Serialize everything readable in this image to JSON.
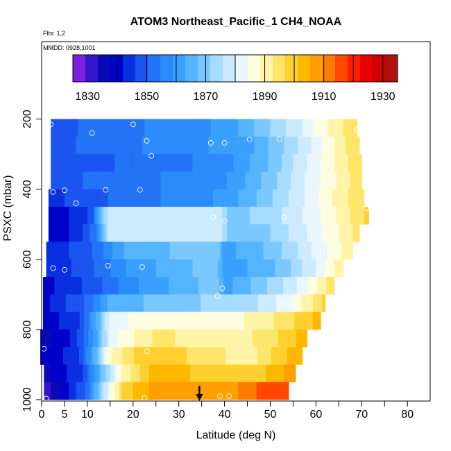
{
  "chart_data": {
    "type": "heatmap",
    "title": "ATOM3 Northeast_Pacific_1 CH4_NOAA",
    "flights_note": "Flts: 1,2",
    "dates_note": "MMDD: 0928,1001",
    "xlabel": "Latitude (deg N)",
    "ylabel": "PSXC (mbar)",
    "xlim": [
      0,
      85
    ],
    "ylim": [
      1000,
      0
    ],
    "x_ticks": [
      0,
      5,
      10,
      20,
      30,
      40,
      50,
      60,
      70,
      80
    ],
    "x_minor_ticks": [
      15,
      25,
      35,
      45,
      55,
      65,
      75
    ],
    "y_ticks": [
      200,
      400,
      600,
      800,
      1000
    ],
    "colorbar": {
      "min": 1825,
      "max": 1935,
      "step": 5,
      "tick_values": [
        1830,
        1850,
        1870,
        1890,
        1910,
        1930
      ],
      "colors": [
        "#7B1FE0",
        "#3515CC",
        "#0A0AB4",
        "#0000C8",
        "#0A2FE0",
        "#1A55F0",
        "#2472F5",
        "#2C8BFA",
        "#3AA0FF",
        "#55B4FF",
        "#7BC8FF",
        "#A8DCFF",
        "#CDEBFF",
        "#EAF7FF",
        "#FFFDE0",
        "#FFF4A8",
        "#FFE66A",
        "#FFD030",
        "#FFB800",
        "#FF9E00",
        "#FF7A00",
        "#FF4800",
        "#FF1A00",
        "#E80000",
        "#CC0000",
        "#B01010"
      ]
    },
    "rows": [
      {
        "p": 225,
        "lat_min": 2,
        "lat_max": 69,
        "stops": [
          [
            2,
            1853
          ],
          [
            40,
            1866
          ],
          [
            50,
            1880
          ],
          [
            57,
            1890
          ],
          [
            63,
            1901
          ],
          [
            69,
            1909
          ]
        ]
      },
      {
        "p": 275,
        "lat_min": 2,
        "lat_max": 69.5,
        "stops": [
          [
            2,
            1853
          ],
          [
            45,
            1868
          ],
          [
            55,
            1883
          ],
          [
            60,
            1892
          ],
          [
            65,
            1902
          ],
          [
            69.5,
            1910
          ]
        ]
      },
      {
        "p": 325,
        "lat_min": 2,
        "lat_max": 70,
        "stops": [
          [
            2,
            1851
          ],
          [
            40,
            1862
          ],
          [
            50,
            1876
          ],
          [
            57,
            1888
          ],
          [
            63,
            1898
          ],
          [
            70,
            1910
          ]
        ]
      },
      {
        "p": 375,
        "lat_min": 2,
        "lat_max": 70,
        "stops": [
          [
            2,
            1853
          ],
          [
            40,
            1864
          ],
          [
            50,
            1878
          ],
          [
            57,
            1889
          ],
          [
            63,
            1898
          ],
          [
            70,
            1909
          ]
        ]
      },
      {
        "p": 425,
        "lat_min": 1.5,
        "lat_max": 70.5,
        "stops": [
          [
            1.5,
            1848
          ],
          [
            10,
            1853
          ],
          [
            40,
            1866
          ],
          [
            50,
            1879
          ],
          [
            57,
            1889
          ],
          [
            63,
            1899
          ],
          [
            70.5,
            1910
          ]
        ]
      },
      {
        "p": 475,
        "lat_min": 1.5,
        "lat_max": 71.5,
        "stops": [
          [
            1.5,
            1843
          ],
          [
            8,
            1846
          ],
          [
            11,
            1852
          ],
          [
            13,
            1874
          ],
          [
            15,
            1890
          ],
          [
            39,
            1889
          ],
          [
            41,
            1878
          ],
          [
            50,
            1882
          ],
          [
            58,
            1891
          ],
          [
            64,
            1899
          ],
          [
            71.5,
            1912
          ]
        ]
      },
      {
        "p": 525,
        "lat_min": 1.5,
        "lat_max": 69.5,
        "stops": [
          [
            1.5,
            1841
          ],
          [
            8,
            1847
          ],
          [
            12,
            1859
          ],
          [
            15,
            1888
          ],
          [
            39,
            1888
          ],
          [
            41,
            1876
          ],
          [
            50,
            1880
          ],
          [
            58,
            1890
          ],
          [
            69.5,
            1907
          ]
        ]
      },
      {
        "p": 575,
        "lat_min": 1,
        "lat_max": 68,
        "stops": [
          [
            1,
            1846
          ],
          [
            10,
            1853
          ],
          [
            18,
            1870
          ],
          [
            38,
            1880
          ],
          [
            40,
            1868
          ],
          [
            50,
            1876
          ],
          [
            58,
            1888
          ],
          [
            68,
            1904
          ]
        ]
      },
      {
        "p": 625,
        "lat_min": 1,
        "lat_max": 66,
        "stops": [
          [
            1,
            1845
          ],
          [
            10,
            1853
          ],
          [
            20,
            1867
          ],
          [
            38,
            1878
          ],
          [
            40,
            1866
          ],
          [
            52,
            1876
          ],
          [
            60,
            1890
          ],
          [
            66,
            1905
          ]
        ]
      },
      {
        "p": 675,
        "lat_min": 0.3,
        "lat_max": 64,
        "stops": [
          [
            0.3,
            1843
          ],
          [
            10,
            1851
          ],
          [
            20,
            1864
          ],
          [
            38,
            1878
          ],
          [
            40,
            1868
          ],
          [
            48,
            1878
          ],
          [
            56,
            1890
          ],
          [
            64,
            1909
          ]
        ]
      },
      {
        "p": 725,
        "lat_min": 0.3,
        "lat_max": 62,
        "stops": [
          [
            0.3,
            1843
          ],
          [
            10,
            1856
          ],
          [
            15,
            1872
          ],
          [
            35,
            1880
          ],
          [
            45,
            1882
          ],
          [
            54,
            1893
          ],
          [
            62,
            1912
          ]
        ]
      },
      {
        "p": 775,
        "lat_min": 0.3,
        "lat_max": 61,
        "stops": [
          [
            0.3,
            1842
          ],
          [
            8,
            1849
          ],
          [
            12,
            1870
          ],
          [
            15,
            1892
          ],
          [
            25,
            1900
          ],
          [
            40,
            1897
          ],
          [
            50,
            1904
          ],
          [
            61,
            1917
          ]
        ]
      },
      {
        "p": 825,
        "lat_min": -0.3,
        "lat_max": 58,
        "stops": [
          [
            -0.3,
            1837
          ],
          [
            7,
            1846
          ],
          [
            12,
            1868
          ],
          [
            15,
            1893
          ],
          [
            25,
            1906
          ],
          [
            42,
            1902
          ],
          [
            50,
            1908
          ],
          [
            58,
            1918
          ]
        ]
      },
      {
        "p": 875,
        "lat_min": -0.3,
        "lat_max": 57,
        "stops": [
          [
            -0.3,
            1840
          ],
          [
            8,
            1848
          ],
          [
            12,
            1875
          ],
          [
            15,
            1900
          ],
          [
            23,
            1915
          ],
          [
            35,
            1908
          ],
          [
            45,
            1902
          ],
          [
            57,
            1920
          ]
        ]
      },
      {
        "p": 925,
        "lat_min": 0.5,
        "lat_max": 55.5,
        "stops": [
          [
            0.5,
            1838
          ],
          [
            9,
            1850
          ],
          [
            14,
            1880
          ],
          [
            18,
            1902
          ],
          [
            25,
            1918
          ],
          [
            40,
            1912
          ],
          [
            48,
            1914
          ],
          [
            55.5,
            1923
          ]
        ]
      },
      {
        "p": 975,
        "lat_min": 0.5,
        "lat_max": 54,
        "stops": [
          [
            0.5,
            1830
          ],
          [
            4,
            1840
          ],
          [
            10,
            1856
          ],
          [
            14,
            1888
          ],
          [
            18,
            1912
          ],
          [
            25,
            1922
          ],
          [
            40,
            1924
          ],
          [
            46,
            1926
          ],
          [
            48,
            1933
          ],
          [
            54,
            1933
          ]
        ]
      }
    ],
    "sample_points": [
      [
        2,
        215
      ],
      [
        20,
        215
      ],
      [
        69,
        230
      ],
      [
        11,
        240
      ],
      [
        23,
        262
      ],
      [
        45.5,
        258
      ],
      [
        52,
        257
      ],
      [
        37,
        268
      ],
      [
        40,
        268
      ],
      [
        24,
        305
      ],
      [
        2.5,
        408
      ],
      [
        5,
        403
      ],
      [
        14,
        402
      ],
      [
        21.5,
        402
      ],
      [
        7.5,
        440
      ],
      [
        40,
        490
      ],
      [
        37.5,
        480
      ],
      [
        53,
        480
      ],
      [
        71,
        455
      ],
      [
        0,
        510
      ],
      [
        2.5,
        625
      ],
      [
        5,
        630
      ],
      [
        14.5,
        618
      ],
      [
        22,
        622
      ],
      [
        39.5,
        682
      ],
      [
        38.5,
        705
      ],
      [
        53,
        725
      ],
      [
        0.5,
        855
      ],
      [
        15.5,
        865
      ],
      [
        23,
        862
      ],
      [
        1,
        997
      ],
      [
        15.5,
        993
      ],
      [
        22.5,
        995
      ],
      [
        39,
        990
      ],
      [
        41,
        990
      ],
      [
        47.5,
        1010
      ]
    ],
    "markers": [
      {
        "type": "top-tick",
        "lat": 19.8,
        "color": "#1E6FE0"
      },
      {
        "type": "bottom-arrow",
        "lat": 34.5,
        "color": "#000000"
      }
    ]
  }
}
